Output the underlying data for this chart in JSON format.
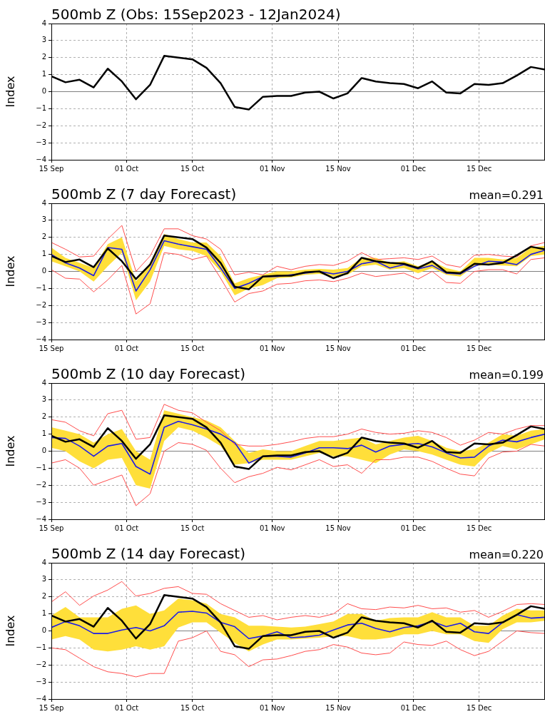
{
  "chart_data": [
    {
      "type": "line",
      "title": "500mb Z (Obs: 15Sep2023 - 12Jan2024)",
      "ylabel": "Index",
      "x": [
        "2023-09-15",
        "2023-09-18",
        "2023-09-21",
        "2023-09-24",
        "2023-09-27",
        "2023-09-30",
        "2023-10-03",
        "2023-10-06",
        "2023-10-09",
        "2023-10-12",
        "2023-10-15",
        "2023-10-18",
        "2023-10-21",
        "2023-10-24",
        "2023-10-27",
        "2023-10-30",
        "2023-11-02",
        "2023-11-05",
        "2023-11-08",
        "2023-11-11",
        "2023-11-14",
        "2023-11-17",
        "2023-11-20",
        "2023-11-23",
        "2023-11-26",
        "2023-11-29",
        "2023-12-02",
        "2023-12-05",
        "2023-12-08",
        "2023-12-11",
        "2023-12-14",
        "2023-12-17",
        "2023-12-20",
        "2023-12-23",
        "2023-12-26",
        "2023-12-29"
      ],
      "series": [
        {
          "color": "#000000",
          "values": [
            0.9,
            0.55,
            0.7,
            0.25,
            1.35,
            0.6,
            -0.45,
            0.4,
            2.1,
            2.0,
            1.9,
            1.4,
            0.5,
            -0.9,
            -1.05,
            -0.3,
            -0.25,
            -0.25,
            -0.05,
            0.0,
            -0.4,
            -0.1,
            0.8,
            0.6,
            0.5,
            0.45,
            0.2,
            0.6,
            -0.05,
            -0.1,
            0.45,
            0.4,
            0.5,
            0.95,
            1.45,
            1.3
          ]
        }
      ],
      "xlim": [
        "2023-09-15",
        "2023-12-29"
      ],
      "xticks": [
        {
          "value": "2023-09-15",
          "label": "15 Sep"
        },
        {
          "value": "2023-10-01",
          "label": "01 Oct"
        },
        {
          "value": "2023-10-15",
          "label": "15 Oct"
        },
        {
          "value": "2023-11-01",
          "label": "01 Nov"
        },
        {
          "value": "2023-11-15",
          "label": "15 Nov"
        },
        {
          "value": "2023-12-01",
          "label": "01 Dec"
        },
        {
          "value": "2023-12-15",
          "label": "15 Dec"
        }
      ],
      "ylim": [
        -4,
        4
      ],
      "yticks": [
        {
          "value": -4,
          "label": "−4"
        },
        {
          "value": -3,
          "label": "−3"
        },
        {
          "value": -2,
          "label": "−2"
        },
        {
          "value": -1,
          "label": "−1"
        },
        0,
        1,
        2,
        3,
        4
      ],
      "grid": true,
      "legend": false,
      "marker": "none",
      "ref_lines": [
        {
          "axis": "y",
          "value": 0,
          "color": "#808080"
        }
      ]
    },
    {
      "type": "line",
      "title": "500mb Z (7 day Forecast)",
      "ylabel": "Index",
      "annotations": [
        "mean=0.291"
      ],
      "x": [
        "2023-09-15",
        "2023-09-18",
        "2023-09-21",
        "2023-09-24",
        "2023-09-27",
        "2023-09-30",
        "2023-10-03",
        "2023-10-06",
        "2023-10-09",
        "2023-10-12",
        "2023-10-15",
        "2023-10-18",
        "2023-10-21",
        "2023-10-24",
        "2023-10-27",
        "2023-10-30",
        "2023-11-02",
        "2023-11-05",
        "2023-11-08",
        "2023-11-11",
        "2023-11-14",
        "2023-11-17",
        "2023-11-20",
        "2023-11-23",
        "2023-11-26",
        "2023-11-29",
        "2023-12-02",
        "2023-12-05",
        "2023-12-08",
        "2023-12-11",
        "2023-12-14",
        "2023-12-17",
        "2023-12-20",
        "2023-12-23",
        "2023-12-26",
        "2023-12-29"
      ],
      "series": [
        {
          "color": "#ff4d4d",
          "values": [
            0.1,
            -0.4,
            -0.45,
            -1.2,
            -0.5,
            0.35,
            -2.5,
            -1.9,
            1.1,
            1.0,
            0.7,
            0.9,
            -0.4,
            -1.8,
            -1.3,
            -1.15,
            -0.75,
            -0.7,
            -0.55,
            -0.5,
            -0.6,
            -0.4,
            -0.1,
            -0.3,
            -0.2,
            -0.1,
            -0.45,
            0.0,
            -0.65,
            -0.7,
            0.0,
            0.1,
            0.1,
            -0.15,
            0.7,
            0.8
          ]
        },
        {
          "color": "#ff4d4d",
          "values": [
            1.7,
            1.3,
            0.85,
            0.9,
            1.9,
            2.7,
            0.0,
            0.9,
            2.5,
            2.5,
            2.1,
            1.9,
            1.3,
            -0.2,
            -0.05,
            -0.2,
            0.3,
            0.1,
            0.3,
            0.4,
            0.35,
            0.6,
            1.1,
            0.7,
            0.75,
            0.8,
            0.7,
            0.9,
            0.4,
            0.25,
            0.95,
            1.0,
            0.9,
            0.85,
            1.5,
            1.7
          ]
        },
        {
          "color": "#1c1ce6",
          "values": [
            1.0,
            0.5,
            0.2,
            -0.25,
            1.4,
            1.3,
            -1.15,
            0.1,
            1.8,
            1.6,
            1.45,
            1.3,
            0.2,
            -1.0,
            -0.7,
            -0.3,
            -0.3,
            -0.2,
            -0.1,
            0.0,
            -0.15,
            0.0,
            0.45,
            0.6,
            0.2,
            0.4,
            0.15,
            0.35,
            -0.1,
            -0.15,
            0.3,
            0.6,
            0.55,
            0.4,
            1.0,
            1.25
          ],
          "lower": [
            0.6,
            0.3,
            0.0,
            -0.6,
            0.3,
            1.1,
            -1.7,
            -0.6,
            1.5,
            1.3,
            1.2,
            0.9,
            0.0,
            -1.4,
            -1.0,
            -0.8,
            -0.4,
            -0.35,
            -0.2,
            -0.15,
            -0.3,
            -0.2,
            0.3,
            0.4,
            0.1,
            0.2,
            -0.1,
            0.2,
            -0.2,
            -0.3,
            0.3,
            0.4,
            0.35,
            0.3,
            0.9,
            1.0
          ],
          "upper": [
            1.4,
            0.8,
            0.5,
            0.2,
            1.6,
            2.0,
            -0.6,
            0.5,
            2.2,
            1.9,
            1.7,
            1.7,
            0.9,
            -0.7,
            -0.4,
            -0.2,
            0.0,
            0.0,
            0.1,
            0.15,
            0.1,
            0.2,
            0.8,
            0.8,
            0.5,
            0.6,
            0.3,
            0.6,
            0.2,
            0.0,
            0.8,
            0.8,
            0.7,
            0.8,
            1.4,
            1.5
          ]
        },
        {
          "color": "#000000",
          "values": [
            0.9,
            0.55,
            0.7,
            0.25,
            1.35,
            0.6,
            -0.45,
            0.4,
            2.1,
            2.0,
            1.9,
            1.4,
            0.5,
            -0.9,
            -1.05,
            -0.3,
            -0.25,
            -0.25,
            -0.05,
            0.0,
            -0.4,
            -0.1,
            0.8,
            0.6,
            0.5,
            0.45,
            0.2,
            0.6,
            -0.05,
            -0.1,
            0.45,
            0.4,
            0.5,
            0.95,
            1.45,
            1.3
          ]
        }
      ],
      "xlim": [
        "2023-09-15",
        "2023-12-29"
      ],
      "xticks": [
        {
          "value": "2023-09-15",
          "label": "15 Sep"
        },
        {
          "value": "2023-10-01",
          "label": "01 Oct"
        },
        {
          "value": "2023-10-15",
          "label": "15 Oct"
        },
        {
          "value": "2023-11-01",
          "label": "01 Nov"
        },
        {
          "value": "2023-11-15",
          "label": "15 Nov"
        },
        {
          "value": "2023-12-01",
          "label": "01 Dec"
        },
        {
          "value": "2023-12-15",
          "label": "15 Dec"
        }
      ],
      "ylim": [
        -4,
        4
      ],
      "yticks": [
        {
          "value": -4,
          "label": "−4"
        },
        {
          "value": -3,
          "label": "−3"
        },
        {
          "value": -2,
          "label": "−2"
        },
        {
          "value": -1,
          "label": "−1"
        },
        0,
        1,
        2,
        3,
        4
      ],
      "grid": true,
      "legend": false,
      "marker": "none",
      "ref_lines": [
        {
          "axis": "y",
          "value": 0,
          "color": "#808080"
        }
      ]
    },
    {
      "type": "line",
      "title": "500mb Z (10 day Forecast)",
      "ylabel": "Index",
      "annotations": [
        "mean=0.199"
      ],
      "x": [
        "2023-09-15",
        "2023-09-18",
        "2023-09-21",
        "2023-09-24",
        "2023-09-27",
        "2023-09-30",
        "2023-10-03",
        "2023-10-06",
        "2023-10-09",
        "2023-10-12",
        "2023-10-15",
        "2023-10-18",
        "2023-10-21",
        "2023-10-24",
        "2023-10-27",
        "2023-10-30",
        "2023-11-02",
        "2023-11-05",
        "2023-11-08",
        "2023-11-11",
        "2023-11-14",
        "2023-11-17",
        "2023-11-20",
        "2023-11-23",
        "2023-11-26",
        "2023-11-29",
        "2023-12-02",
        "2023-12-05",
        "2023-12-08",
        "2023-12-11",
        "2023-12-14",
        "2023-12-17",
        "2023-12-20",
        "2023-12-23",
        "2023-12-26",
        "2023-12-29"
      ],
      "series": [
        {
          "color": "#ff4d4d",
          "values": [
            -0.7,
            -0.5,
            -1.0,
            -2.0,
            -1.7,
            -1.4,
            -3.2,
            -2.5,
            0.0,
            0.5,
            0.4,
            0.05,
            -1.0,
            -1.85,
            -1.5,
            -1.3,
            -0.95,
            -1.1,
            -0.8,
            -0.5,
            -0.9,
            -0.8,
            -1.3,
            -0.5,
            -0.5,
            -0.35,
            -0.35,
            -0.6,
            -1.0,
            -1.35,
            -1.45,
            -0.4,
            -0.05,
            0.0,
            0.4,
            0.3
          ]
        },
        {
          "color": "#ff4d4d",
          "values": [
            1.85,
            1.7,
            1.2,
            0.9,
            2.2,
            2.4,
            0.7,
            0.8,
            2.75,
            2.4,
            2.25,
            1.7,
            1.2,
            0.4,
            0.3,
            0.3,
            0.4,
            0.55,
            0.75,
            0.85,
            0.85,
            1.0,
            1.3,
            1.1,
            1.0,
            1.05,
            1.2,
            1.1,
            0.8,
            0.35,
            0.65,
            1.1,
            1.0,
            1.3,
            1.5,
            1.5
          ]
        },
        {
          "color": "#1c1ce6",
          "values": [
            0.8,
            0.75,
            0.3,
            -0.3,
            0.3,
            0.45,
            -0.9,
            -1.35,
            1.4,
            1.75,
            1.55,
            1.3,
            1.0,
            0.5,
            -0.7,
            -0.3,
            -0.3,
            -0.35,
            -0.1,
            0.2,
            0.2,
            0.15,
            0.35,
            -0.05,
            0.3,
            0.4,
            0.45,
            0.25,
            -0.1,
            -0.4,
            -0.35,
            0.3,
            0.65,
            0.55,
            0.8,
            1.0
          ],
          "lower": [
            0.2,
            0.0,
            -0.6,
            -1.0,
            -0.5,
            -0.4,
            -2.0,
            -2.2,
            0.6,
            1.4,
            1.2,
            0.8,
            0.3,
            -0.8,
            -0.7,
            -0.5,
            -0.5,
            -0.5,
            -0.3,
            -0.1,
            -0.3,
            -0.3,
            -0.5,
            -0.7,
            -0.2,
            0.1,
            0.0,
            -0.2,
            -0.5,
            -0.8,
            -0.9,
            -0.1,
            0.3,
            0.1,
            0.4,
            0.7
          ],
          "upper": [
            1.4,
            1.2,
            1.0,
            0.5,
            1.0,
            1.3,
            0.0,
            -0.5,
            2.4,
            2.2,
            2.0,
            1.8,
            1.4,
            0.6,
            -0.1,
            0.1,
            0.0,
            0.0,
            0.3,
            0.6,
            0.6,
            0.7,
            0.8,
            0.4,
            0.6,
            0.8,
            0.9,
            0.6,
            0.2,
            0.0,
            0.1,
            0.5,
            1.0,
            0.9,
            1.2,
            1.3
          ]
        },
        {
          "color": "#000000",
          "values": [
            0.9,
            0.55,
            0.7,
            0.25,
            1.35,
            0.6,
            -0.45,
            0.4,
            2.1,
            2.0,
            1.9,
            1.4,
            0.5,
            -0.9,
            -1.05,
            -0.3,
            -0.25,
            -0.25,
            -0.05,
            0.0,
            -0.4,
            -0.1,
            0.8,
            0.6,
            0.5,
            0.45,
            0.2,
            0.6,
            -0.05,
            -0.1,
            0.45,
            0.4,
            0.5,
            0.95,
            1.45,
            1.3
          ]
        }
      ],
      "xlim": [
        "2023-09-15",
        "2023-12-29"
      ],
      "xticks": [
        {
          "value": "2023-09-15",
          "label": "15 Sep"
        },
        {
          "value": "2023-10-01",
          "label": "01 Oct"
        },
        {
          "value": "2023-10-15",
          "label": "15 Oct"
        },
        {
          "value": "2023-11-01",
          "label": "01 Nov"
        },
        {
          "value": "2023-11-15",
          "label": "15 Nov"
        },
        {
          "value": "2023-12-01",
          "label": "01 Dec"
        },
        {
          "value": "2023-12-15",
          "label": "15 Dec"
        }
      ],
      "ylim": [
        -4,
        4
      ],
      "yticks": [
        {
          "value": -4,
          "label": "−4"
        },
        {
          "value": -3,
          "label": "−3"
        },
        {
          "value": -2,
          "label": "−2"
        },
        {
          "value": -1,
          "label": "−1"
        },
        0,
        1,
        2,
        3,
        4
      ],
      "grid": true,
      "legend": false,
      "marker": "none",
      "ref_lines": [
        {
          "axis": "y",
          "value": 0,
          "color": "#808080"
        }
      ]
    },
    {
      "type": "line",
      "title": "500mb Z (14 day Forecast)",
      "ylabel": "Index",
      "annotations": [
        "mean=0.220"
      ],
      "x": [
        "2023-09-15",
        "2023-09-18",
        "2023-09-21",
        "2023-09-24",
        "2023-09-27",
        "2023-09-30",
        "2023-10-03",
        "2023-10-06",
        "2023-10-09",
        "2023-10-12",
        "2023-10-15",
        "2023-10-18",
        "2023-10-21",
        "2023-10-24",
        "2023-10-27",
        "2023-10-30",
        "2023-11-02",
        "2023-11-05",
        "2023-11-08",
        "2023-11-11",
        "2023-11-14",
        "2023-11-17",
        "2023-11-20",
        "2023-11-23",
        "2023-11-26",
        "2023-11-29",
        "2023-12-02",
        "2023-12-05",
        "2023-12-08",
        "2023-12-11",
        "2023-12-14",
        "2023-12-17",
        "2023-12-20",
        "2023-12-23",
        "2023-12-26",
        "2023-12-29"
      ],
      "series": [
        {
          "color": "#ff4d4d",
          "values": [
            -1.0,
            -1.1,
            -1.6,
            -2.1,
            -2.4,
            -2.5,
            -2.7,
            -2.5,
            -2.5,
            -0.6,
            -0.4,
            0.0,
            -1.2,
            -1.4,
            -2.1,
            -1.7,
            -1.65,
            -1.45,
            -1.2,
            -1.1,
            -0.8,
            -0.95,
            -1.3,
            -1.4,
            -1.3,
            -0.65,
            -0.8,
            -0.85,
            -0.6,
            -1.1,
            -1.45,
            -1.2,
            -0.6,
            0.0,
            -0.1,
            -0.15
          ]
        },
        {
          "color": "#ff4d4d",
          "values": [
            1.7,
            2.3,
            1.5,
            2.05,
            2.4,
            2.9,
            2.05,
            2.2,
            2.5,
            2.6,
            2.2,
            2.15,
            1.6,
            1.2,
            0.8,
            0.9,
            0.65,
            0.8,
            0.9,
            0.8,
            1.0,
            1.6,
            1.3,
            1.25,
            1.4,
            1.35,
            1.5,
            1.3,
            1.35,
            1.1,
            1.2,
            0.8,
            1.15,
            1.55,
            1.6,
            1.55
          ]
        },
        {
          "color": "#1c1ce6",
          "values": [
            0.2,
            0.55,
            0.3,
            -0.15,
            -0.15,
            0.05,
            0.2,
            0.0,
            0.3,
            1.1,
            1.15,
            1.05,
            0.5,
            0.25,
            -0.45,
            -0.3,
            -0.05,
            -0.4,
            -0.35,
            -0.25,
            0.05,
            0.35,
            0.45,
            0.15,
            -0.05,
            0.2,
            0.3,
            0.55,
            0.25,
            0.45,
            -0.05,
            -0.15,
            0.5,
            0.95,
            0.75,
            0.8
          ],
          "lower": [
            -0.5,
            -0.3,
            -0.5,
            -1.1,
            -1.2,
            -1.1,
            -0.9,
            -1.1,
            -0.9,
            0.2,
            0.5,
            0.5,
            -0.1,
            -0.7,
            -1.2,
            -0.8,
            -0.5,
            -0.5,
            -0.45,
            -0.4,
            -0.3,
            -0.3,
            -0.5,
            -0.5,
            -0.4,
            -0.2,
            -0.2,
            0.0,
            -0.2,
            -0.2,
            -0.6,
            -0.7,
            0.1,
            0.5,
            0.5,
            0.6
          ],
          "upper": [
            0.9,
            1.4,
            0.8,
            0.8,
            0.8,
            1.3,
            1.5,
            1.0,
            1.2,
            1.9,
            1.8,
            1.6,
            1.0,
            0.8,
            0.3,
            0.3,
            0.25,
            0.2,
            0.25,
            0.4,
            0.55,
            1.0,
            1.0,
            0.6,
            0.75,
            0.8,
            0.8,
            1.1,
            0.8,
            0.8,
            0.3,
            0.3,
            0.9,
            1.3,
            1.2,
            1.2
          ]
        },
        {
          "color": "#000000",
          "values": [
            0.9,
            0.55,
            0.7,
            0.25,
            1.35,
            0.6,
            -0.45,
            0.4,
            2.1,
            2.0,
            1.9,
            1.4,
            0.5,
            -0.9,
            -1.05,
            -0.3,
            -0.25,
            -0.25,
            -0.05,
            0.0,
            -0.4,
            -0.1,
            0.8,
            0.6,
            0.5,
            0.45,
            0.2,
            0.6,
            -0.05,
            -0.1,
            0.45,
            0.4,
            0.5,
            0.95,
            1.45,
            1.3
          ]
        }
      ],
      "xlim": [
        "2023-09-15",
        "2023-12-29"
      ],
      "xticks": [
        {
          "value": "2023-09-15",
          "label": "15 Sep"
        },
        {
          "value": "2023-10-01",
          "label": "01 Oct"
        },
        {
          "value": "2023-10-15",
          "label": "15 Oct"
        },
        {
          "value": "2023-11-01",
          "label": "01 Nov"
        },
        {
          "value": "2023-11-15",
          "label": "15 Nov"
        },
        {
          "value": "2023-12-01",
          "label": "01 Dec"
        },
        {
          "value": "2023-12-15",
          "label": "15 Dec"
        }
      ],
      "ylim": [
        -4,
        4
      ],
      "yticks": [
        {
          "value": -4,
          "label": "−4"
        },
        {
          "value": -3,
          "label": "−3"
        },
        {
          "value": -2,
          "label": "−2"
        },
        {
          "value": -1,
          "label": "−1"
        },
        0,
        1,
        2,
        3,
        4
      ],
      "grid": true,
      "legend": false,
      "marker": "none",
      "ref_lines": [
        {
          "axis": "y",
          "value": 0,
          "color": "#808080"
        }
      ]
    }
  ]
}
